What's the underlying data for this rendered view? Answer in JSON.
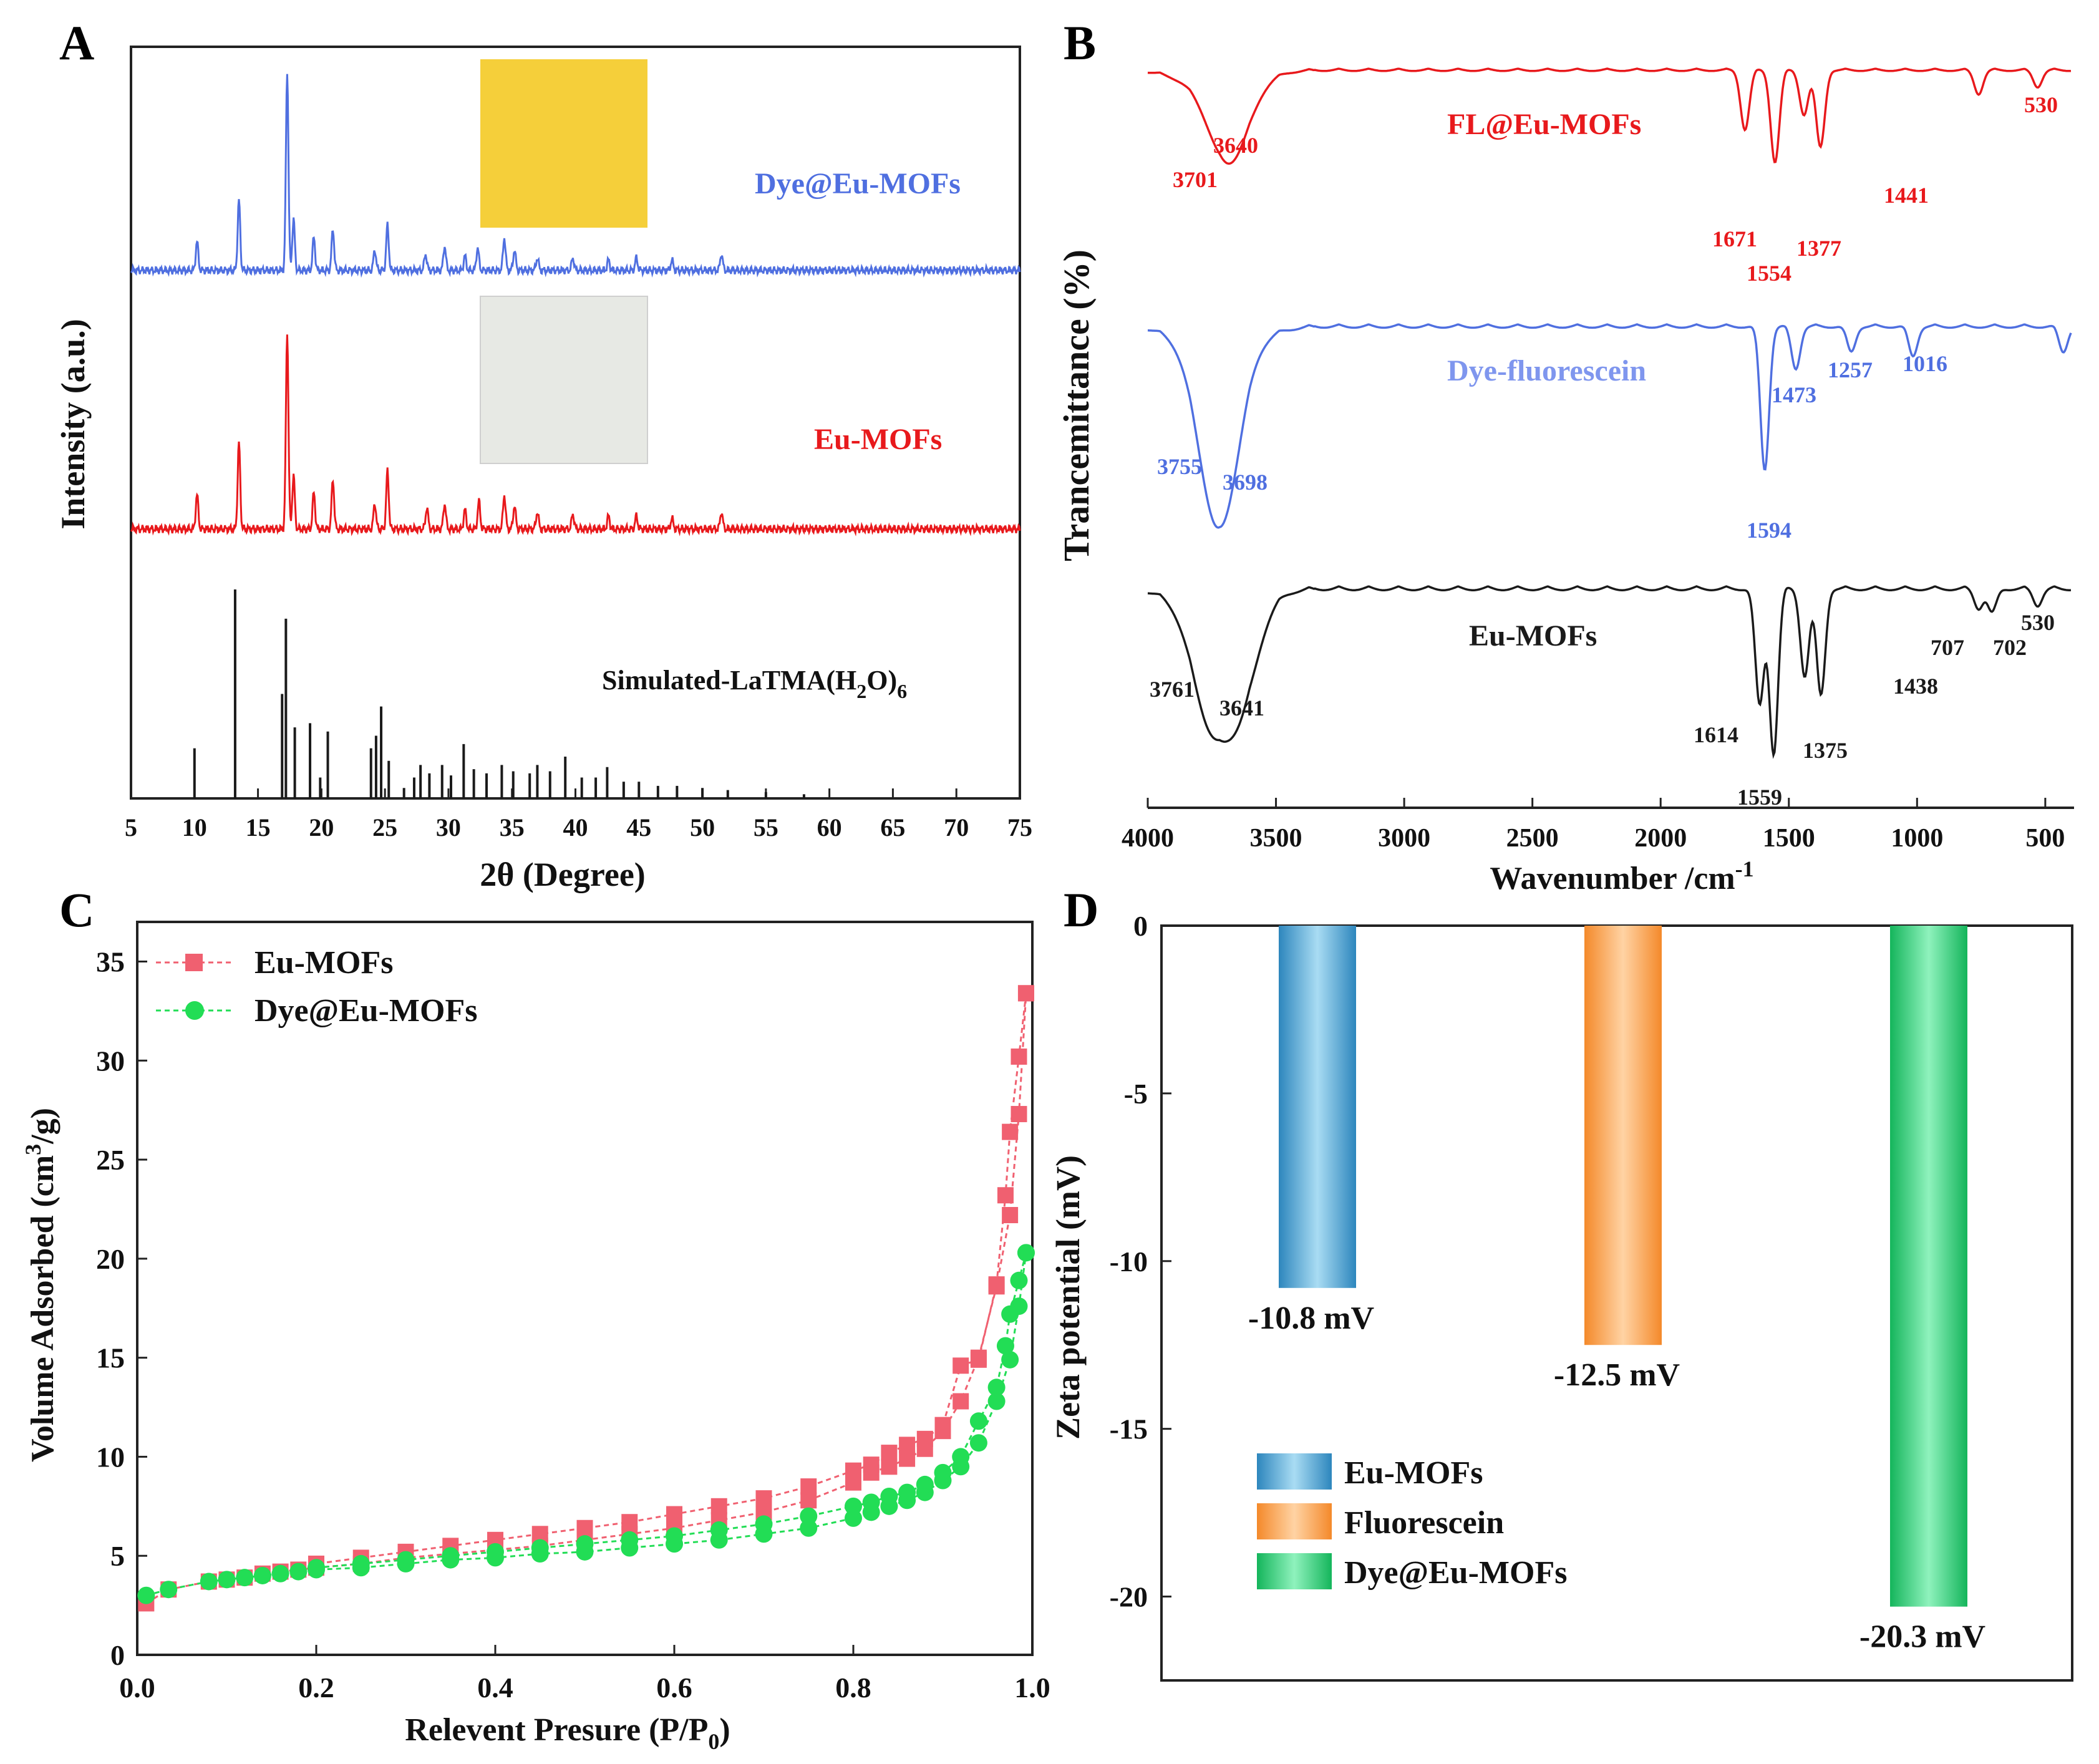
{
  "figure": {
    "panel_letters": [
      "A",
      "B",
      "C",
      "D"
    ]
  },
  "colors": {
    "red": "#e8191c",
    "blue": "#4f6fe0",
    "black": "#1a1a1a",
    "bet_red": "#f06070",
    "bet_green": "#22dd55",
    "eu_blue": "#3fa2d4",
    "fluo_orange": "#f7a04a",
    "dye_green": "#20c86a",
    "inset_yellow": "#f5cf3a",
    "inset_white": "#e7e9e4"
  },
  "chart_data": [
    {
      "panel": "A",
      "type": "line",
      "xlabel": "2θ (Degree)",
      "ylabel": "Intensity (a.u.)",
      "xlim": [
        5,
        75
      ],
      "xticks": [
        5,
        10,
        15,
        20,
        25,
        30,
        35,
        40,
        45,
        50,
        55,
        60,
        65,
        70,
        75
      ],
      "yticks_shown": false,
      "series": [
        {
          "name": "Dye@Eu-MOFs",
          "color": "#4f6fe0",
          "peaks": [
            [
              10.2,
              0.14
            ],
            [
              13.5,
              0.34
            ],
            [
              17.3,
              0.97
            ],
            [
              17.8,
              0.25
            ],
            [
              19.4,
              0.16
            ],
            [
              20.9,
              0.2
            ],
            [
              24.2,
              0.1
            ],
            [
              25.2,
              0.22
            ],
            [
              28.2,
              0.08
            ],
            [
              29.7,
              0.12
            ],
            [
              31.3,
              0.07
            ],
            [
              32.3,
              0.11
            ],
            [
              34.4,
              0.16
            ],
            [
              35.2,
              0.1
            ],
            [
              37.0,
              0.06
            ],
            [
              39.8,
              0.06
            ],
            [
              42.6,
              0.05
            ],
            [
              44.8,
              0.06
            ],
            [
              47.6,
              0.05
            ],
            [
              51.5,
              0.08
            ]
          ],
          "baseline": 0.02
        },
        {
          "name": "Eu-MOFs",
          "color": "#e8191c",
          "peaks": [
            [
              10.2,
              0.16
            ],
            [
              13.5,
              0.4
            ],
            [
              17.3,
              0.92
            ],
            [
              17.8,
              0.25
            ],
            [
              19.4,
              0.17
            ],
            [
              20.9,
              0.23
            ],
            [
              24.2,
              0.12
            ],
            [
              25.2,
              0.27
            ],
            [
              28.3,
              0.1
            ],
            [
              29.7,
              0.12
            ],
            [
              31.3,
              0.09
            ],
            [
              32.4,
              0.13
            ],
            [
              34.4,
              0.16
            ],
            [
              35.2,
              0.11
            ],
            [
              37.0,
              0.08
            ],
            [
              39.8,
              0.07
            ],
            [
              42.6,
              0.06
            ],
            [
              44.8,
              0.06
            ],
            [
              47.6,
              0.05
            ],
            [
              51.5,
              0.08
            ]
          ],
          "baseline": 0.02
        },
        {
          "name": "Simulated-LaTMA(H₂O)₆",
          "label_main": "Simulated-LaTMA(H",
          "label_sub1": "2",
          "label_mid": "O)",
          "label_sub2": "6",
          "color": "#1a1a1a",
          "sticks": [
            [
              10.0,
              0.24
            ],
            [
              13.2,
              1.0
            ],
            [
              16.9,
              0.5
            ],
            [
              17.2,
              0.86
            ],
            [
              17.9,
              0.34
            ],
            [
              19.1,
              0.36
            ],
            [
              19.9,
              0.1
            ],
            [
              20.5,
              0.32
            ],
            [
              23.9,
              0.24
            ],
            [
              24.3,
              0.3
            ],
            [
              24.7,
              0.44
            ],
            [
              25.3,
              0.18
            ],
            [
              26.5,
              0.05
            ],
            [
              27.3,
              0.1
            ],
            [
              27.8,
              0.16
            ],
            [
              28.5,
              0.12
            ],
            [
              29.5,
              0.16
            ],
            [
              30.2,
              0.11
            ],
            [
              31.2,
              0.26
            ],
            [
              32.0,
              0.14
            ],
            [
              33.0,
              0.12
            ],
            [
              34.2,
              0.16
            ],
            [
              35.1,
              0.13
            ],
            [
              36.4,
              0.12
            ],
            [
              37.0,
              0.16
            ],
            [
              38.0,
              0.13
            ],
            [
              39.2,
              0.2
            ],
            [
              40.5,
              0.1
            ],
            [
              41.6,
              0.1
            ],
            [
              42.5,
              0.15
            ],
            [
              43.8,
              0.08
            ],
            [
              45.0,
              0.08
            ],
            [
              46.5,
              0.06
            ],
            [
              48.0,
              0.06
            ],
            [
              50.0,
              0.05
            ],
            [
              52.0,
              0.04
            ],
            [
              55.0,
              0.03
            ],
            [
              58.0,
              0.02
            ]
          ]
        }
      ],
      "insets": [
        {
          "name": "Dye@Eu-MOFs powder photo",
          "color": "#f5cf3a"
        },
        {
          "name": "Eu-MOFs powder photo",
          "color": "#e7e9e4"
        }
      ]
    },
    {
      "panel": "B",
      "type": "line",
      "xlabel_main": "Wavenumber /cm",
      "xlabel_sup": "-1",
      "ylabel": "Trancemittance (%)",
      "xlim": [
        4000,
        400
      ],
      "xticks": [
        4000,
        3500,
        3000,
        2500,
        2000,
        1500,
        1000,
        500
      ],
      "yticks_shown": false,
      "series": [
        {
          "name": "FL@Eu-MOFs",
          "color": "#e8191c",
          "dips": [
            [
              3701,
              0.9
            ],
            [
              3640,
              0.45
            ],
            [
              1671,
              1.0
            ],
            [
              1554,
              1.55
            ],
            [
              1441,
              0.75
            ],
            [
              1377,
              1.3
            ],
            [
              760,
              0.4
            ],
            [
              530,
              0.28
            ]
          ],
          "labels": [
            "3701",
            "3640",
            "1671",
            "1554",
            "1441",
            "1377",
            "530"
          ]
        },
        {
          "name": "Dye-fluorescein",
          "color": "#4f6fe0",
          "dips": [
            [
              3755,
              1.0
            ],
            [
              3698,
              1.25
            ],
            [
              1594,
              1.7
            ],
            [
              1473,
              0.5
            ],
            [
              1257,
              0.3
            ],
            [
              1016,
              0.35
            ],
            [
              430,
              0.3
            ]
          ],
          "labels": [
            "3755",
            "3698",
            "1594",
            "1473",
            "1257",
            "1016"
          ]
        },
        {
          "name": "Eu-MOFs",
          "color": "#1a1a1a",
          "dips": [
            [
              3761,
              0.95
            ],
            [
              3641,
              0.9
            ],
            [
              1614,
              1.2
            ],
            [
              1559,
              1.7
            ],
            [
              1438,
              0.9
            ],
            [
              1375,
              1.1
            ],
            [
              760,
              0.2
            ],
            [
              707,
              0.25
            ],
            [
              530,
              0.17
            ]
          ],
          "labels": [
            "3761",
            "3641",
            "1614",
            "1559",
            "1438",
            "1375",
            "707",
            "702",
            "530"
          ]
        }
      ]
    },
    {
      "panel": "C",
      "type": "line",
      "xlabel_main": "Relevent Presure (P/P",
      "xlabel_sub": "0",
      "xlabel_tail": ")",
      "ylabel_main": "Volume Adsorbed (cm",
      "ylabel_sup": "3",
      "ylabel_tail": "/g)",
      "xlim": [
        0.0,
        1.0
      ],
      "ylim": [
        0,
        37
      ],
      "xticks": [
        "0.0",
        "0.2",
        "0.4",
        "0.6",
        "0.8",
        "1.0"
      ],
      "yticks": [
        "0",
        "5",
        "10",
        "15",
        "20",
        "25",
        "30",
        "35"
      ],
      "legend": "top-left",
      "series": [
        {
          "name": "Eu-MOFs",
          "color": "#f06070",
          "marker": "square",
          "adsorption": [
            [
              0.01,
              2.6
            ],
            [
              0.035,
              3.3
            ],
            [
              0.08,
              3.7
            ],
            [
              0.1,
              3.8
            ],
            [
              0.12,
              3.9
            ],
            [
              0.14,
              4.1
            ],
            [
              0.16,
              4.2
            ],
            [
              0.18,
              4.3
            ],
            [
              0.2,
              4.4
            ],
            [
              0.25,
              4.6
            ],
            [
              0.3,
              4.9
            ],
            [
              0.35,
              5.1
            ],
            [
              0.4,
              5.3
            ],
            [
              0.45,
              5.5
            ],
            [
              0.5,
              5.8
            ],
            [
              0.55,
              6.1
            ],
            [
              0.6,
              6.4
            ],
            [
              0.65,
              6.8
            ],
            [
              0.7,
              7.2
            ],
            [
              0.75,
              7.8
            ],
            [
              0.8,
              8.7
            ],
            [
              0.82,
              9.2
            ],
            [
              0.84,
              9.5
            ],
            [
              0.86,
              9.9
            ],
            [
              0.88,
              10.4
            ],
            [
              0.9,
              11.3
            ],
            [
              0.92,
              12.8
            ],
            [
              0.94,
              15.0
            ],
            [
              0.96,
              18.6
            ],
            [
              0.975,
              22.2
            ],
            [
              0.985,
              27.3
            ],
            [
              0.993,
              33.4
            ]
          ],
          "desorption": [
            [
              0.993,
              33.4
            ],
            [
              0.985,
              30.2
            ],
            [
              0.975,
              26.4
            ],
            [
              0.97,
              23.2
            ],
            [
              0.96,
              18.7
            ],
            [
              0.94,
              14.9
            ],
            [
              0.92,
              14.6
            ],
            [
              0.9,
              11.6
            ],
            [
              0.88,
              10.9
            ],
            [
              0.86,
              10.6
            ],
            [
              0.84,
              10.2
            ],
            [
              0.82,
              9.6
            ],
            [
              0.8,
              9.3
            ],
            [
              0.75,
              8.5
            ],
            [
              0.7,
              7.9
            ],
            [
              0.65,
              7.5
            ],
            [
              0.6,
              7.1
            ],
            [
              0.55,
              6.7
            ],
            [
              0.5,
              6.4
            ],
            [
              0.45,
              6.1
            ],
            [
              0.4,
              5.8
            ],
            [
              0.35,
              5.5
            ],
            [
              0.3,
              5.2
            ],
            [
              0.25,
              4.9
            ],
            [
              0.2,
              4.6
            ]
          ]
        },
        {
          "name": "Dye@Eu-MOFs",
          "color": "#22dd55",
          "marker": "circle",
          "adsorption": [
            [
              0.01,
              3.0
            ],
            [
              0.035,
              3.3
            ],
            [
              0.08,
              3.7
            ],
            [
              0.1,
              3.8
            ],
            [
              0.12,
              3.9
            ],
            [
              0.14,
              4.0
            ],
            [
              0.16,
              4.1
            ],
            [
              0.18,
              4.2
            ],
            [
              0.2,
              4.3
            ],
            [
              0.25,
              4.4
            ],
            [
              0.3,
              4.6
            ],
            [
              0.35,
              4.8
            ],
            [
              0.4,
              4.9
            ],
            [
              0.45,
              5.1
            ],
            [
              0.5,
              5.2
            ],
            [
              0.55,
              5.4
            ],
            [
              0.6,
              5.6
            ],
            [
              0.65,
              5.8
            ],
            [
              0.7,
              6.1
            ],
            [
              0.75,
              6.4
            ],
            [
              0.8,
              6.9
            ],
            [
              0.82,
              7.2
            ],
            [
              0.84,
              7.5
            ],
            [
              0.86,
              7.8
            ],
            [
              0.88,
              8.2
            ],
            [
              0.9,
              8.8
            ],
            [
              0.92,
              9.5
            ],
            [
              0.94,
              10.7
            ],
            [
              0.96,
              12.8
            ],
            [
              0.975,
              14.9
            ],
            [
              0.985,
              17.6
            ],
            [
              0.993,
              20.3
            ]
          ],
          "desorption": [
            [
              0.993,
              20.3
            ],
            [
              0.985,
              18.9
            ],
            [
              0.975,
              17.2
            ],
            [
              0.97,
              15.6
            ],
            [
              0.96,
              13.5
            ],
            [
              0.94,
              11.8
            ],
            [
              0.92,
              10.0
            ],
            [
              0.9,
              9.2
            ],
            [
              0.88,
              8.6
            ],
            [
              0.86,
              8.2
            ],
            [
              0.84,
              8.0
            ],
            [
              0.82,
              7.7
            ],
            [
              0.8,
              7.5
            ],
            [
              0.75,
              7.0
            ],
            [
              0.7,
              6.6
            ],
            [
              0.65,
              6.3
            ],
            [
              0.6,
              6.0
            ],
            [
              0.55,
              5.8
            ],
            [
              0.5,
              5.6
            ],
            [
              0.45,
              5.4
            ],
            [
              0.4,
              5.2
            ],
            [
              0.35,
              5.0
            ],
            [
              0.3,
              4.8
            ],
            [
              0.25,
              4.6
            ],
            [
              0.2,
              4.4
            ]
          ]
        }
      ]
    },
    {
      "panel": "D",
      "type": "bar",
      "ylabel": "Zeta potential (mV)",
      "ylim": [
        -22.5,
        0
      ],
      "yticks": [
        "0",
        "-5",
        "-10",
        "-15",
        "-20"
      ],
      "legend": "bottom-left",
      "categories": [
        "Eu-MOFs",
        "Fluorescein",
        "Dye@Eu-MOFs"
      ],
      "values": [
        -10.8,
        -12.5,
        -20.3
      ],
      "value_labels": [
        "-10.8 mV",
        "-12.5 mV",
        "-20.3 mV"
      ],
      "colors": [
        "#3fa2d4",
        "#f7a04a",
        "#20c86a"
      ]
    }
  ]
}
